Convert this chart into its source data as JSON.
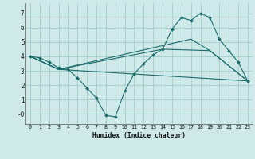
{
  "xlabel": "Humidex (Indice chaleur)",
  "xlim": [
    -0.5,
    23.5
  ],
  "ylim": [
    -0.7,
    7.7
  ],
  "yticks": [
    0,
    1,
    2,
    3,
    4,
    5,
    6,
    7
  ],
  "ytick_labels": [
    "-0",
    "1",
    "2",
    "3",
    "4",
    "5",
    "6",
    "7"
  ],
  "xticks": [
    0,
    1,
    2,
    3,
    4,
    5,
    6,
    7,
    8,
    9,
    10,
    11,
    12,
    13,
    14,
    15,
    16,
    17,
    18,
    19,
    20,
    21,
    22,
    23
  ],
  "bg_color": "#cfe9e8",
  "line_color": "#1a6b6b",
  "grid_color": "#9ecece",
  "lines": [
    {
      "x": [
        0,
        1,
        2,
        3,
        4,
        5,
        6,
        7,
        8,
        9,
        10,
        11,
        12,
        13,
        14,
        15,
        16,
        17,
        18,
        19,
        20,
        21,
        22,
        23
      ],
      "y": [
        4.0,
        3.9,
        3.6,
        3.2,
        3.1,
        2.5,
        1.8,
        1.1,
        -0.1,
        -0.2,
        1.6,
        2.8,
        3.5,
        4.1,
        4.5,
        5.9,
        6.7,
        6.5,
        7.0,
        6.7,
        5.2,
        4.4,
        3.6,
        2.3
      ],
      "marker": true
    },
    {
      "x": [
        0,
        3,
        23
      ],
      "y": [
        4.0,
        3.1,
        2.3
      ],
      "marker": false
    },
    {
      "x": [
        0,
        3,
        14,
        19,
        23
      ],
      "y": [
        4.0,
        3.1,
        4.5,
        4.4,
        2.3
      ],
      "marker": false
    },
    {
      "x": [
        0,
        3,
        17,
        19,
        23
      ],
      "y": [
        4.0,
        3.1,
        5.2,
        4.4,
        2.3
      ],
      "marker": false
    }
  ]
}
